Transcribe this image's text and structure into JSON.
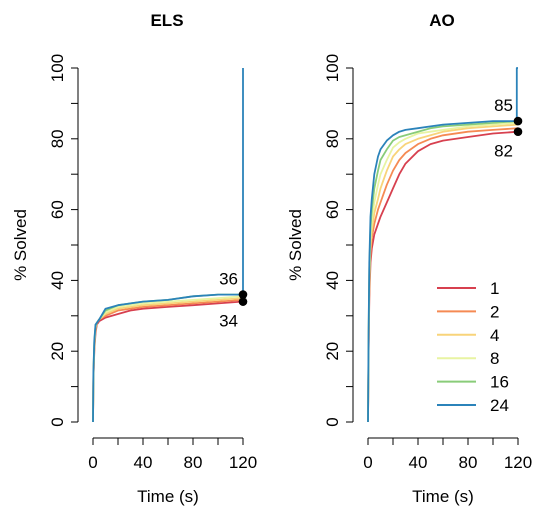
{
  "chart_data": [
    {
      "type": "line",
      "title": "ELS",
      "xlabel": "Time (s)",
      "ylabel": "% Solved",
      "xlim": [
        0,
        120
      ],
      "ylim": [
        0,
        100
      ],
      "xticks": [
        0,
        40,
        80,
        120
      ],
      "yticks": [
        0,
        20,
        40,
        60,
        80,
        100
      ],
      "series": [
        {
          "name": "1",
          "color": "#d7404f",
          "x": [
            0,
            0.3,
            1,
            2,
            3,
            5,
            10,
            20,
            30,
            40,
            60,
            80,
            100,
            119,
            120
          ],
          "y": [
            0,
            12,
            20,
            25,
            27.5,
            28.5,
            29.5,
            30.5,
            31.5,
            32,
            32.5,
            33,
            33.5,
            34,
            34
          ]
        },
        {
          "name": "2",
          "color": "#f58a53",
          "x": [
            0,
            0.3,
            1,
            2,
            3,
            5,
            10,
            20,
            30,
            40,
            60,
            80,
            100,
            119,
            120
          ],
          "y": [
            0,
            12.5,
            21,
            26,
            28,
            29,
            30,
            31.5,
            32,
            32.5,
            33,
            33.5,
            34,
            34.5,
            34.5
          ]
        },
        {
          "name": "4",
          "color": "#f8d47a",
          "x": [
            0,
            0.3,
            1,
            2,
            3,
            5,
            10,
            20,
            30,
            40,
            60,
            80,
            100,
            119,
            120
          ],
          "y": [
            0,
            13,
            21.5,
            26.5,
            28,
            29,
            30.5,
            32,
            32.5,
            33,
            33.5,
            34,
            34.5,
            35,
            35
          ]
        },
        {
          "name": "8",
          "color": "#e8f4a2",
          "x": [
            0,
            0.3,
            1,
            2,
            3,
            5,
            10,
            20,
            30,
            40,
            60,
            80,
            100,
            119,
            120
          ],
          "y": [
            0,
            13,
            22,
            27,
            28,
            29,
            31,
            32.5,
            33,
            33.5,
            34,
            34.5,
            35,
            35.5,
            35.5
          ]
        },
        {
          "name": "16",
          "color": "#89cc79",
          "x": [
            0,
            0.3,
            1,
            2,
            3,
            5,
            10,
            20,
            30,
            40,
            60,
            80,
            100,
            119,
            120
          ],
          "y": [
            0,
            13.5,
            22.5,
            27,
            28,
            29,
            31.5,
            33,
            33.5,
            34,
            34.5,
            35.5,
            36,
            36,
            36
          ]
        },
        {
          "name": "24",
          "color": "#2b83ba",
          "x": [
            0,
            0.3,
            1,
            2,
            3,
            5,
            10,
            20,
            30,
            40,
            60,
            80,
            100,
            119,
            120,
            120
          ],
          "y": [
            0,
            14,
            23,
            27.5,
            28,
            29,
            32,
            33,
            33.5,
            34,
            34.5,
            35.5,
            36,
            36,
            36,
            100
          ]
        }
      ],
      "annotations": [
        {
          "x": 120,
          "y": 36,
          "text": "36"
        },
        {
          "x": 120,
          "y": 34,
          "text": "34"
        }
      ]
    },
    {
      "type": "line",
      "title": "AO",
      "xlabel": "Time (s)",
      "ylabel": "% Solved",
      "xlim": [
        0,
        120
      ],
      "ylim": [
        0,
        100
      ],
      "xticks": [
        0,
        40,
        80,
        120
      ],
      "yticks": [
        0,
        20,
        40,
        60,
        80,
        100
      ],
      "series": [
        {
          "name": "1",
          "color": "#d7404f",
          "x": [
            0,
            0.5,
            1,
            2,
            3,
            5,
            8,
            10,
            15,
            20,
            25,
            30,
            40,
            50,
            60,
            80,
            100,
            120
          ],
          "y": [
            0,
            20,
            35,
            45,
            49,
            53,
            56,
            58,
            62,
            66,
            70,
            73,
            76.5,
            78.5,
            79.5,
            80.5,
            81.5,
            82
          ]
        },
        {
          "name": "2",
          "color": "#f58a53",
          "x": [
            0,
            0.5,
            1,
            2,
            3,
            5,
            8,
            10,
            15,
            20,
            25,
            30,
            40,
            50,
            60,
            80,
            100,
            120
          ],
          "y": [
            0,
            21,
            37,
            48,
            52,
            56,
            60,
            62,
            67,
            71,
            74,
            76,
            78.5,
            80,
            81,
            82,
            82.5,
            83
          ]
        },
        {
          "name": "4",
          "color": "#f8d47a",
          "x": [
            0,
            0.5,
            1,
            2,
            3,
            5,
            8,
            10,
            15,
            20,
            25,
            30,
            40,
            50,
            60,
            80,
            100,
            120
          ],
          "y": [
            0,
            22,
            39,
            50,
            54,
            59,
            63,
            66,
            71,
            75,
            77,
            78.5,
            80,
            81,
            82,
            83,
            83.5,
            84
          ]
        },
        {
          "name": "8",
          "color": "#e8f4a2",
          "x": [
            0,
            0.5,
            1,
            2,
            3,
            5,
            8,
            10,
            15,
            20,
            25,
            30,
            40,
            50,
            60,
            80,
            100,
            120
          ],
          "y": [
            0,
            23,
            41,
            52,
            57,
            62,
            67,
            70,
            74,
            77.5,
            79,
            80,
            81.5,
            82,
            82.5,
            83.5,
            84,
            84.5
          ]
        },
        {
          "name": "16",
          "color": "#89cc79",
          "x": [
            0,
            0.5,
            1,
            2,
            3,
            5,
            8,
            10,
            15,
            20,
            25,
            30,
            40,
            50,
            60,
            80,
            100,
            120
          ],
          "y": [
            0,
            24,
            43,
            55,
            60,
            66,
            71,
            74,
            77,
            79.5,
            80.5,
            81,
            82,
            83,
            83.5,
            84,
            84.5,
            85
          ]
        },
        {
          "name": "24",
          "color": "#2b83ba",
          "x": [
            0,
            0.5,
            1,
            2,
            3,
            5,
            8,
            10,
            15,
            20,
            25,
            30,
            40,
            50,
            60,
            80,
            100,
            119,
            119,
            120
          ],
          "y": [
            0,
            25,
            45,
            58,
            63,
            70,
            75,
            77,
            79.5,
            81,
            82,
            82.5,
            83,
            83.5,
            84,
            84.5,
            85,
            85,
            100,
            100
          ]
        }
      ],
      "annotations": [
        {
          "x": 120,
          "y": 85,
          "text": "85"
        },
        {
          "x": 120,
          "y": 82,
          "text": "82"
        }
      ],
      "legend": {
        "placement": "bottom-right",
        "entries": [
          "1",
          "2",
          "4",
          "8",
          "16",
          "24"
        ]
      }
    }
  ]
}
